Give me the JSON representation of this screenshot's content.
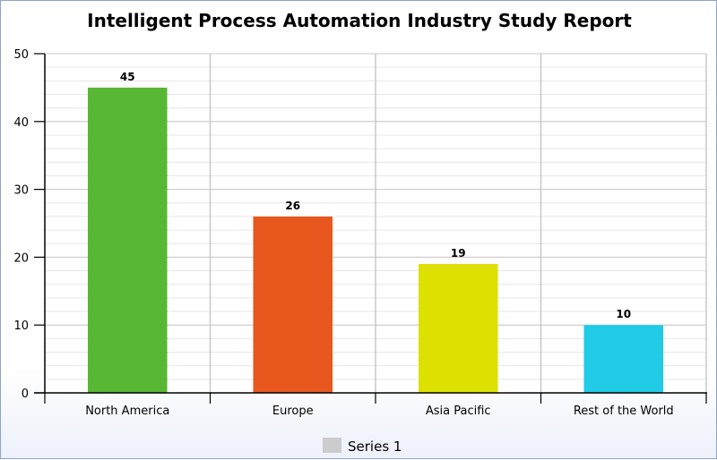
{
  "chart_data": {
    "type": "bar",
    "title": "Intelligent Process Automation Industry Study Report",
    "xlabel": "",
    "ylabel": "",
    "categories": [
      "North America",
      "Europe",
      "Asia Pacific",
      "Rest of the World"
    ],
    "series": [
      {
        "name": "Series 1",
        "values": [
          45,
          26,
          19,
          10
        ]
      }
    ],
    "bar_colors": [
      "#58b735",
      "#e8581e",
      "#dde000",
      "#22cbe5"
    ],
    "legend_color": "#cccccc",
    "ylim": [
      0,
      50
    ],
    "y_ticks": [
      0,
      10,
      20,
      30,
      40,
      50
    ],
    "minor_grid_step": 2,
    "grid": true,
    "legend_position": "bottom-center",
    "data_labels": true
  }
}
